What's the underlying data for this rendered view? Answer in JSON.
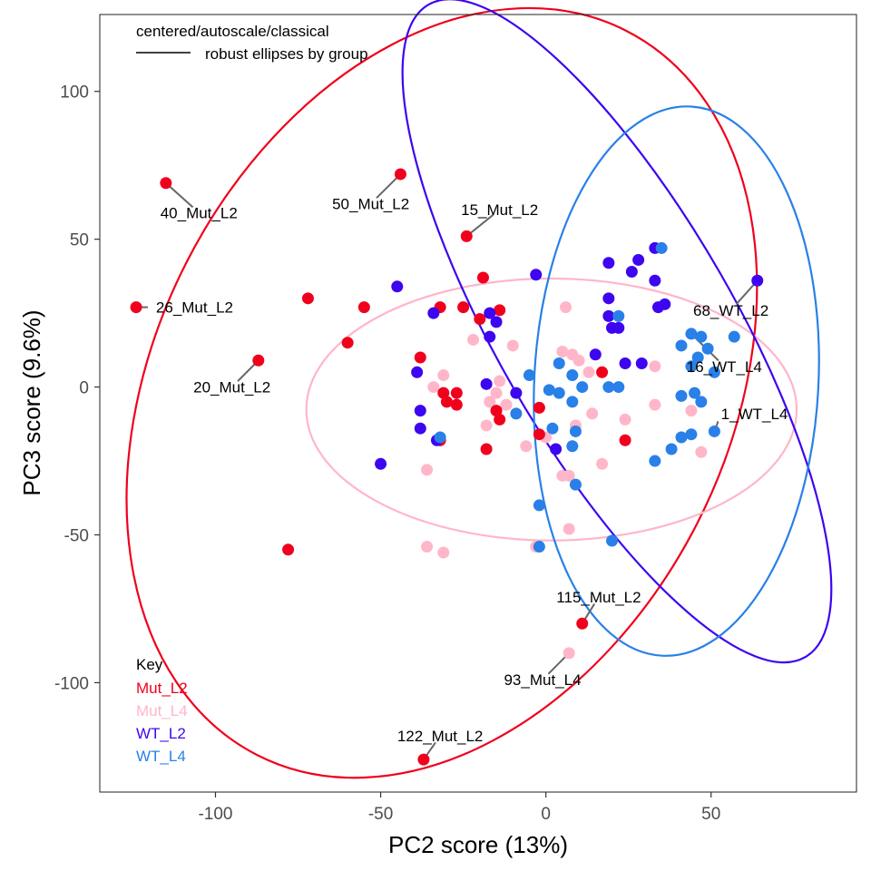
{
  "chart_data": {
    "type": "scatter",
    "title": "",
    "xlabel": "PC2 score (13%)",
    "ylabel": "PC3 score (9.6%)",
    "xlim": [
      -135,
      94
    ],
    "ylim": [
      -137,
      126
    ],
    "xticks": [
      -100,
      -50,
      0,
      50
    ],
    "yticks": [
      -100,
      -50,
      0,
      50,
      100
    ],
    "grid": false,
    "annotation": {
      "line1": "centered/autoscale/classical",
      "line2": "robust ellipses by group"
    },
    "legend": {
      "title": "Key",
      "position": "bottom-left"
    },
    "series": [
      {
        "name": "Mut_L2",
        "color": "#f0001c",
        "points": [
          [
            -115,
            69
          ],
          [
            -44,
            72
          ],
          [
            -24,
            51
          ],
          [
            -124,
            27
          ],
          [
            -87,
            9
          ],
          [
            -37,
            -126
          ],
          [
            11,
            -80
          ],
          [
            -72,
            30
          ],
          [
            -55,
            27
          ],
          [
            -60,
            15
          ],
          [
            -78,
            -55
          ],
          [
            -19,
            37
          ],
          [
            -32,
            27
          ],
          [
            -25,
            27
          ],
          [
            -14,
            26
          ],
          [
            -20,
            23
          ],
          [
            -38,
            10
          ],
          [
            -31,
            -2
          ],
          [
            -27,
            -2
          ],
          [
            -30,
            -5
          ],
          [
            -27,
            -6
          ],
          [
            -15,
            -8
          ],
          [
            -14,
            -11
          ],
          [
            -18,
            -21
          ],
          [
            -32,
            -18
          ],
          [
            -2,
            -7
          ],
          [
            -2,
            -16
          ],
          [
            17,
            5
          ],
          [
            24,
            -18
          ]
        ]
      },
      {
        "name": "Mut_L4",
        "color": "#ffb6c8",
        "points": [
          [
            7,
            -90
          ],
          [
            -36,
            -28
          ],
          [
            -36,
            -54
          ],
          [
            -31,
            -56
          ],
          [
            -3,
            -54
          ],
          [
            7,
            -48
          ],
          [
            5,
            -30
          ],
          [
            7,
            -30
          ],
          [
            17,
            -26
          ],
          [
            24,
            -11
          ],
          [
            33,
            7
          ],
          [
            6,
            27
          ],
          [
            5,
            12
          ],
          [
            8,
            11
          ],
          [
            10,
            9
          ],
          [
            13,
            5
          ],
          [
            -10,
            14
          ],
          [
            -22,
            16
          ],
          [
            -31,
            4
          ],
          [
            -34,
            0
          ],
          [
            -14,
            2
          ],
          [
            -15,
            -2
          ],
          [
            -17,
            -5
          ],
          [
            -18,
            -13
          ],
          [
            -12,
            -6
          ],
          [
            0,
            -17
          ],
          [
            9,
            -13
          ],
          [
            14,
            -9
          ],
          [
            -6,
            -20
          ],
          [
            33,
            -6
          ],
          [
            44,
            -8
          ],
          [
            47,
            -22
          ]
        ]
      },
      {
        "name": "WT_L2",
        "color": "#3d05f0",
        "points": [
          [
            64,
            36
          ],
          [
            -45,
            34
          ],
          [
            -3,
            38
          ],
          [
            19,
            42
          ],
          [
            28,
            43
          ],
          [
            33,
            47
          ],
          [
            26,
            39
          ],
          [
            33,
            36
          ],
          [
            36,
            28
          ],
          [
            34,
            27
          ],
          [
            19,
            30
          ],
          [
            19,
            24
          ],
          [
            20,
            20
          ],
          [
            22,
            20
          ],
          [
            15,
            11
          ],
          [
            24,
            8
          ],
          [
            29,
            8
          ],
          [
            -34,
            25
          ],
          [
            -17,
            25
          ],
          [
            -15,
            22
          ],
          [
            -17,
            17
          ],
          [
            -39,
            5
          ],
          [
            -18,
            1
          ],
          [
            -9,
            -2
          ],
          [
            -38,
            -8
          ],
          [
            -38,
            -14
          ],
          [
            -50,
            -26
          ],
          [
            -33,
            -18
          ],
          [
            3,
            -21
          ]
        ]
      },
      {
        "name": "WT_L4",
        "color": "#2980e8",
        "points": [
          [
            51,
            -15
          ],
          [
            35,
            47
          ],
          [
            22,
            24
          ],
          [
            44,
            18
          ],
          [
            47,
            17
          ],
          [
            57,
            17
          ],
          [
            41,
            14
          ],
          [
            49,
            13
          ],
          [
            46,
            10
          ],
          [
            51,
            5
          ],
          [
            44,
            7
          ],
          [
            4,
            8
          ],
          [
            11,
            0
          ],
          [
            19,
            0
          ],
          [
            22,
            0
          ],
          [
            -5,
            4
          ],
          [
            8,
            4
          ],
          [
            1,
            -1
          ],
          [
            4,
            -2
          ],
          [
            8,
            -5
          ],
          [
            41,
            -3
          ],
          [
            45,
            -2
          ],
          [
            47,
            -5
          ],
          [
            -9,
            -9
          ],
          [
            2,
            -14
          ],
          [
            9,
            -15
          ],
          [
            8,
            -20
          ],
          [
            33,
            -25
          ],
          [
            38,
            -21
          ],
          [
            41,
            -17
          ],
          [
            44,
            -16
          ],
          [
            9,
            -33
          ],
          [
            -2,
            -40
          ],
          [
            -2,
            -54
          ],
          [
            20,
            -52
          ],
          [
            -32,
            -17
          ]
        ]
      }
    ],
    "ellipses": [
      {
        "group": "Mut_L2",
        "color": "#f0001c",
        "cx": -31.5,
        "cy": -2,
        "rx": 123,
        "ry": 97,
        "angle_deg": -63
      },
      {
        "group": "Mut_L4",
        "color": "#ffb6c8",
        "cx": 1.7,
        "cy": -7.6,
        "rx": 74.2,
        "ry": 44.3,
        "angle_deg": 0
      },
      {
        "group": "WT_L2",
        "color": "#3d05f0",
        "cx": 21.5,
        "cy": 19,
        "rx": 114,
        "ry": 40,
        "angle_deg": 60
      },
      {
        "group": "WT_L4",
        "color": "#2980e8",
        "cx": 39.5,
        "cy": 2,
        "rx": 43,
        "ry": 93,
        "angle_deg": 3
      }
    ],
    "point_labels": [
      {
        "text": "40_Mut_L2",
        "x": -115,
        "y": 69,
        "lx": -105,
        "ly": 59,
        "anchor": "middle"
      },
      {
        "text": "50_Mut_L2",
        "x": -44,
        "y": 72,
        "lx": -53,
        "ly": 62,
        "anchor": "middle"
      },
      {
        "text": "15_Mut_L2",
        "x": -24,
        "y": 51,
        "lx": -14,
        "ly": 60,
        "anchor": "middle"
      },
      {
        "text": "26_Mut_L2",
        "x": -124,
        "y": 27,
        "lx": -118,
        "ly": 27,
        "anchor": "start"
      },
      {
        "text": "20_Mut_L2",
        "x": -87,
        "y": 9,
        "lx": -95,
        "ly": 0,
        "anchor": "middle"
      },
      {
        "text": "68_WT_L2",
        "x": 64,
        "y": 36,
        "lx": 56,
        "ly": 26,
        "anchor": "middle"
      },
      {
        "text": "16_WT_L4",
        "x": 44,
        "y": 18,
        "lx": 54,
        "ly": 7,
        "anchor": "middle"
      },
      {
        "text": "1_WT_L4",
        "x": 51,
        "y": -15,
        "lx": 53,
        "ly": -9,
        "anchor": "start"
      },
      {
        "text": "115_Mut_L2",
        "x": 11,
        "y": -80,
        "lx": 16,
        "ly": -71,
        "anchor": "middle"
      },
      {
        "text": "93_Mut_L4",
        "x": 7,
        "y": -90,
        "lx": -1,
        "ly": -99,
        "anchor": "middle"
      },
      {
        "text": "122_Mut_L2",
        "x": -37,
        "y": -126,
        "lx": -32,
        "ly": -118,
        "anchor": "middle"
      }
    ]
  }
}
